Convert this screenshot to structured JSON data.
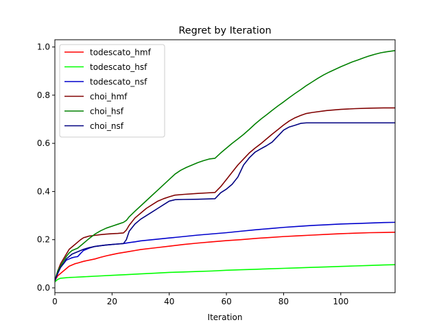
{
  "chart_data": {
    "type": "line",
    "title": "Regret by Iteration",
    "xlabel": "Iteration",
    "ylabel": "",
    "xlim": [
      0,
      119
    ],
    "ylim": [
      -0.02,
      1.03
    ],
    "xticks": [
      0,
      20,
      40,
      60,
      80,
      100
    ],
    "yticks": [
      0.0,
      0.2,
      0.4,
      0.6,
      0.8,
      1.0
    ],
    "xtick_labels": [
      "0",
      "20",
      "40",
      "60",
      "80",
      "100"
    ],
    "ytick_labels": [
      "0.0",
      "0.2",
      "0.4",
      "0.6",
      "0.8",
      "1.0"
    ],
    "grid": false,
    "legend_position": "top-left",
    "series": [
      {
        "name": "todescato_hmf",
        "color": "#ff0000",
        "points": [
          [
            0,
            0.03
          ],
          [
            1,
            0.05
          ],
          [
            2,
            0.06
          ],
          [
            3,
            0.07
          ],
          [
            4,
            0.08
          ],
          [
            5,
            0.09
          ],
          [
            6,
            0.095
          ],
          [
            7,
            0.1
          ],
          [
            8,
            0.103
          ],
          [
            10,
            0.11
          ],
          [
            12,
            0.115
          ],
          [
            14,
            0.12
          ],
          [
            16,
            0.127
          ],
          [
            18,
            0.133
          ],
          [
            20,
            0.138
          ],
          [
            22,
            0.143
          ],
          [
            24,
            0.147
          ],
          [
            26,
            0.151
          ],
          [
            28,
            0.155
          ],
          [
            30,
            0.159
          ],
          [
            35,
            0.166
          ],
          [
            40,
            0.173
          ],
          [
            45,
            0.18
          ],
          [
            50,
            0.186
          ],
          [
            55,
            0.191
          ],
          [
            60,
            0.196
          ],
          [
            65,
            0.2
          ],
          [
            70,
            0.205
          ],
          [
            75,
            0.209
          ],
          [
            80,
            0.213
          ],
          [
            85,
            0.216
          ],
          [
            90,
            0.219
          ],
          [
            95,
            0.222
          ],
          [
            100,
            0.225
          ],
          [
            105,
            0.227
          ],
          [
            110,
            0.229
          ],
          [
            115,
            0.23
          ],
          [
            119,
            0.231
          ]
        ]
      },
      {
        "name": "todescato_hsf",
        "color": "#00ff00",
        "points": [
          [
            0,
            0.025
          ],
          [
            1,
            0.035
          ],
          [
            2,
            0.04
          ],
          [
            3,
            0.041
          ],
          [
            4,
            0.042
          ],
          [
            5,
            0.043
          ],
          [
            7,
            0.044
          ],
          [
            10,
            0.046
          ],
          [
            15,
            0.049
          ],
          [
            20,
            0.052
          ],
          [
            25,
            0.055
          ],
          [
            30,
            0.058
          ],
          [
            35,
            0.061
          ],
          [
            40,
            0.064
          ],
          [
            45,
            0.066
          ],
          [
            50,
            0.068
          ],
          [
            55,
            0.07
          ],
          [
            60,
            0.073
          ],
          [
            65,
            0.075
          ],
          [
            70,
            0.077
          ],
          [
            75,
            0.079
          ],
          [
            80,
            0.081
          ],
          [
            85,
            0.083
          ],
          [
            90,
            0.085
          ],
          [
            95,
            0.087
          ],
          [
            100,
            0.089
          ],
          [
            105,
            0.091
          ],
          [
            110,
            0.093
          ],
          [
            115,
            0.095
          ],
          [
            119,
            0.096
          ]
        ]
      },
      {
        "name": "todescato_nsf",
        "color": "#0000cc",
        "points": [
          [
            0,
            0.03
          ],
          [
            1,
            0.06
          ],
          [
            2,
            0.09
          ],
          [
            3,
            0.1
          ],
          [
            4,
            0.115
          ],
          [
            5,
            0.12
          ],
          [
            6,
            0.125
          ],
          [
            7,
            0.128
          ],
          [
            8,
            0.13
          ],
          [
            9,
            0.143
          ],
          [
            10,
            0.155
          ],
          [
            12,
            0.165
          ],
          [
            14,
            0.172
          ],
          [
            16,
            0.175
          ],
          [
            18,
            0.178
          ],
          [
            20,
            0.18
          ],
          [
            22,
            0.182
          ],
          [
            24,
            0.184
          ],
          [
            26,
            0.188
          ],
          [
            28,
            0.191
          ],
          [
            30,
            0.195
          ],
          [
            35,
            0.201
          ],
          [
            40,
            0.207
          ],
          [
            45,
            0.213
          ],
          [
            50,
            0.219
          ],
          [
            55,
            0.224
          ],
          [
            60,
            0.229
          ],
          [
            65,
            0.235
          ],
          [
            70,
            0.241
          ],
          [
            75,
            0.246
          ],
          [
            80,
            0.251
          ],
          [
            85,
            0.255
          ],
          [
            90,
            0.259
          ],
          [
            95,
            0.262
          ],
          [
            100,
            0.265
          ],
          [
            105,
            0.267
          ],
          [
            110,
            0.269
          ],
          [
            115,
            0.271
          ],
          [
            119,
            0.272
          ]
        ]
      },
      {
        "name": "choi_hmf",
        "color": "#800000",
        "points": [
          [
            0,
            0.03
          ],
          [
            1,
            0.07
          ],
          [
            2,
            0.1
          ],
          [
            3,
            0.12
          ],
          [
            4,
            0.14
          ],
          [
            5,
            0.16
          ],
          [
            6,
            0.17
          ],
          [
            7,
            0.18
          ],
          [
            8,
            0.19
          ],
          [
            9,
            0.2
          ],
          [
            10,
            0.208
          ],
          [
            12,
            0.215
          ],
          [
            14,
            0.218
          ],
          [
            16,
            0.221
          ],
          [
            18,
            0.223
          ],
          [
            20,
            0.225
          ],
          [
            22,
            0.226
          ],
          [
            24,
            0.228
          ],
          [
            25,
            0.24
          ],
          [
            26,
            0.26
          ],
          [
            28,
            0.29
          ],
          [
            30,
            0.31
          ],
          [
            32,
            0.33
          ],
          [
            34,
            0.345
          ],
          [
            36,
            0.36
          ],
          [
            38,
            0.37
          ],
          [
            40,
            0.378
          ],
          [
            42,
            0.385
          ],
          [
            45,
            0.388
          ],
          [
            50,
            0.392
          ],
          [
            53,
            0.394
          ],
          [
            56,
            0.396
          ],
          [
            58,
            0.42
          ],
          [
            60,
            0.45
          ],
          [
            62,
            0.48
          ],
          [
            64,
            0.51
          ],
          [
            66,
            0.535
          ],
          [
            68,
            0.56
          ],
          [
            70,
            0.58
          ],
          [
            72,
            0.598
          ],
          [
            74,
            0.618
          ],
          [
            76,
            0.638
          ],
          [
            78,
            0.657
          ],
          [
            80,
            0.676
          ],
          [
            82,
            0.693
          ],
          [
            84,
            0.706
          ],
          [
            86,
            0.716
          ],
          [
            88,
            0.724
          ],
          [
            90,
            0.728
          ],
          [
            95,
            0.736
          ],
          [
            100,
            0.741
          ],
          [
            105,
            0.744
          ],
          [
            110,
            0.746
          ],
          [
            115,
            0.747
          ],
          [
            119,
            0.747
          ]
        ]
      },
      {
        "name": "choi_hsf",
        "color": "#008000",
        "points": [
          [
            0,
            0.03
          ],
          [
            1,
            0.07
          ],
          [
            2,
            0.09
          ],
          [
            3,
            0.11
          ],
          [
            4,
            0.13
          ],
          [
            5,
            0.145
          ],
          [
            6,
            0.155
          ],
          [
            7,
            0.16
          ],
          [
            8,
            0.165
          ],
          [
            9,
            0.175
          ],
          [
            10,
            0.185
          ],
          [
            12,
            0.205
          ],
          [
            14,
            0.223
          ],
          [
            16,
            0.237
          ],
          [
            18,
            0.248
          ],
          [
            20,
            0.256
          ],
          [
            22,
            0.264
          ],
          [
            24,
            0.272
          ],
          [
            25,
            0.28
          ],
          [
            26,
            0.295
          ],
          [
            28,
            0.318
          ],
          [
            30,
            0.34
          ],
          [
            32,
            0.362
          ],
          [
            34,
            0.384
          ],
          [
            36,
            0.406
          ],
          [
            38,
            0.428
          ],
          [
            40,
            0.45
          ],
          [
            42,
            0.472
          ],
          [
            44,
            0.488
          ],
          [
            46,
            0.5
          ],
          [
            48,
            0.51
          ],
          [
            50,
            0.52
          ],
          [
            52,
            0.528
          ],
          [
            54,
            0.535
          ],
          [
            56,
            0.538
          ],
          [
            58,
            0.56
          ],
          [
            60,
            0.58
          ],
          [
            62,
            0.6
          ],
          [
            64,
            0.618
          ],
          [
            66,
            0.637
          ],
          [
            68,
            0.658
          ],
          [
            70,
            0.68
          ],
          [
            72,
            0.7
          ],
          [
            74,
            0.718
          ],
          [
            76,
            0.737
          ],
          [
            78,
            0.755
          ],
          [
            80,
            0.772
          ],
          [
            82,
            0.79
          ],
          [
            84,
            0.807
          ],
          [
            86,
            0.823
          ],
          [
            88,
            0.84
          ],
          [
            90,
            0.855
          ],
          [
            92,
            0.87
          ],
          [
            94,
            0.884
          ],
          [
            96,
            0.896
          ],
          [
            98,
            0.907
          ],
          [
            100,
            0.918
          ],
          [
            102,
            0.928
          ],
          [
            104,
            0.938
          ],
          [
            106,
            0.946
          ],
          [
            108,
            0.955
          ],
          [
            110,
            0.963
          ],
          [
            112,
            0.97
          ],
          [
            114,
            0.976
          ],
          [
            116,
            0.98
          ],
          [
            119,
            0.985
          ]
        ]
      },
      {
        "name": "choi_nsf",
        "color": "#000080",
        "points": [
          [
            0,
            0.03
          ],
          [
            1,
            0.06
          ],
          [
            2,
            0.085
          ],
          [
            3,
            0.1
          ],
          [
            4,
            0.12
          ],
          [
            5,
            0.13
          ],
          [
            6,
            0.14
          ],
          [
            7,
            0.145
          ],
          [
            8,
            0.15
          ],
          [
            9,
            0.155
          ],
          [
            10,
            0.16
          ],
          [
            12,
            0.167
          ],
          [
            14,
            0.172
          ],
          [
            16,
            0.175
          ],
          [
            18,
            0.178
          ],
          [
            20,
            0.18
          ],
          [
            22,
            0.182
          ],
          [
            24,
            0.184
          ],
          [
            25,
            0.2
          ],
          [
            26,
            0.235
          ],
          [
            28,
            0.265
          ],
          [
            30,
            0.285
          ],
          [
            32,
            0.3
          ],
          [
            34,
            0.315
          ],
          [
            36,
            0.33
          ],
          [
            38,
            0.345
          ],
          [
            40,
            0.36
          ],
          [
            42,
            0.366
          ],
          [
            45,
            0.367
          ],
          [
            50,
            0.368
          ],
          [
            53,
            0.369
          ],
          [
            56,
            0.37
          ],
          [
            58,
            0.395
          ],
          [
            60,
            0.41
          ],
          [
            62,
            0.43
          ],
          [
            64,
            0.46
          ],
          [
            66,
            0.51
          ],
          [
            68,
            0.54
          ],
          [
            70,
            0.563
          ],
          [
            72,
            0.577
          ],
          [
            74,
            0.59
          ],
          [
            76,
            0.605
          ],
          [
            78,
            0.63
          ],
          [
            80,
            0.655
          ],
          [
            82,
            0.668
          ],
          [
            84,
            0.675
          ],
          [
            86,
            0.683
          ],
          [
            88,
            0.685
          ],
          [
            90,
            0.685
          ],
          [
            95,
            0.685
          ],
          [
            100,
            0.685
          ],
          [
            105,
            0.685
          ],
          [
            110,
            0.685
          ],
          [
            115,
            0.685
          ],
          [
            119,
            0.685
          ]
        ]
      }
    ]
  }
}
